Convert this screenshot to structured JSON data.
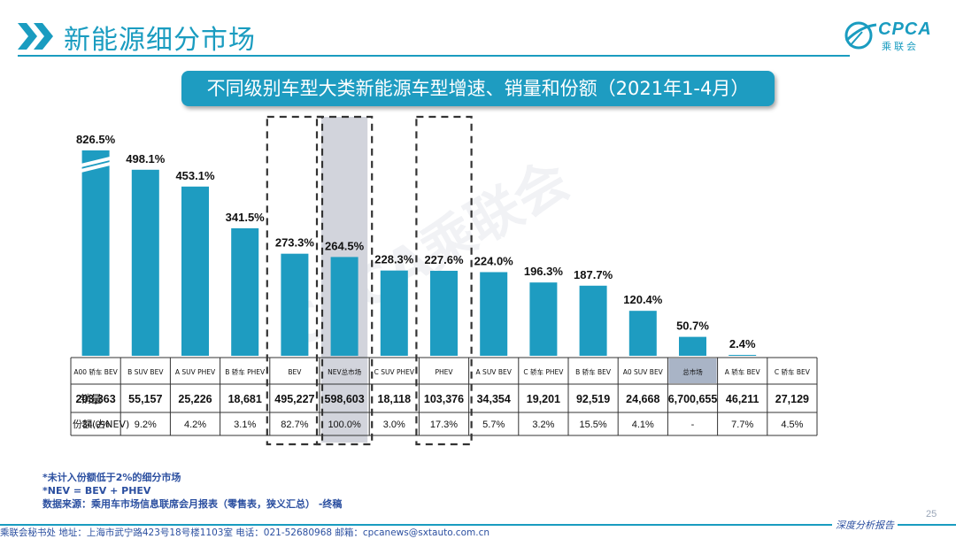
{
  "header": {
    "title": "新能源细分市场",
    "logo_text": "CPCA",
    "logo_sub": "乘联会"
  },
  "chart_data": {
    "type": "bar",
    "title": "不同级别车型大类新能源车型增速、销量和份额（2021年1-4月）",
    "categories": [
      "A00 轿车 BEV",
      "B SUV BEV",
      "A SUV PHEV",
      "B 轿车 PHEV",
      "BEV",
      "NEV总市场",
      "C SUV PHEV",
      "PHEV",
      "A SUV BEV",
      "C 轿车 PHEV",
      "B 轿车 BEV",
      "A0 SUV BEV",
      "总市场",
      "A 轿车 BEV",
      "C 轿车 BEV"
    ],
    "series": [
      {
        "values": [
          826.5,
          498.1,
          453.1,
          341.5,
          273.3,
          264.5,
          228.3,
          227.6,
          224.0,
          196.3,
          187.7,
          120.4,
          50.7,
          2.4,
          null
        ]
      }
    ],
    "growth_labels": [
      "826.5%",
      "498.1%",
      "453.1%",
      "341.5%",
      "273.3%",
      "264.5%",
      "228.3%",
      "227.6%",
      "224.0%",
      "196.3%",
      "187.7%",
      "120.4%",
      "50.7%",
      "2.4%",
      ""
    ],
    "axis_break_on": "A00 轿车 BEV",
    "highlighted": [
      "BEV",
      "NEV总市场",
      "PHEV"
    ],
    "table": {
      "row_labels": [
        "销量",
        "份额(占NEV)"
      ],
      "sales": [
        "203,363",
        "55,157",
        "25,226",
        "18,681",
        "495,227",
        "598,603",
        "18,118",
        "103,376",
        "34,354",
        "19,201",
        "92,519",
        "24,668",
        "6,700,655",
        "46,211",
        "27,129"
      ],
      "share": [
        "34.0%",
        "9.2%",
        "4.2%",
        "3.1%",
        "82.7%",
        "100.0%",
        "3.0%",
        "17.3%",
        "5.7%",
        "3.2%",
        "15.5%",
        "4.1%",
        "-",
        "7.7%",
        "4.5%"
      ]
    },
    "colors": {
      "bar": "#1e9cc1",
      "total_bar": "#1e9cc1",
      "total_header": "#a9b4c6",
      "nev_highlight": "#d2d4dc"
    }
  },
  "notes": [
    "*未计入份额低于2%的细分市场",
    "*NEV = BEV + PHEV",
    "数据来源：乘用车市场信息联席会月报表（零售表，狭义汇总）  -终稿"
  ],
  "footer": {
    "address": "乘联会秘书处   地址：上海市武宁路423号18号楼1103室   电话：021-52680968   邮箱：cpcanews@sxtauto.com.cn",
    "report": "深度分析报告",
    "page": "25"
  },
  "watermark": "CPCA乘联会"
}
